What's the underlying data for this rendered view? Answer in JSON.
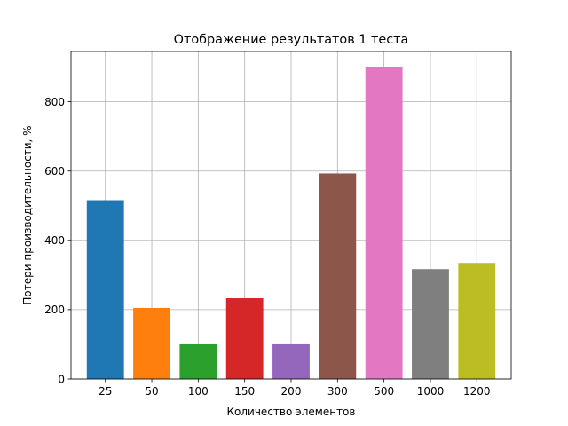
{
  "chart_data": {
    "type": "bar",
    "title": "Отображение результатов 1 теста",
    "xlabel": "Количество элементов",
    "ylabel": "Потери производительности, %",
    "categories": [
      "25",
      "50",
      "100",
      "150",
      "200",
      "300",
      "500",
      "1000",
      "1200"
    ],
    "values": [
      516,
      205,
      100,
      233,
      100,
      593,
      900,
      317,
      335
    ],
    "colors": [
      "#1f77b4",
      "#ff7f0e",
      "#2ca02c",
      "#d62728",
      "#9467bd",
      "#8c564b",
      "#e377c2",
      "#7f7f7f",
      "#bcbd22"
    ],
    "ylim": [
      0,
      945
    ],
    "yticks": [
      0,
      200,
      400,
      600,
      800
    ],
    "grid": true,
    "legend": false
  }
}
